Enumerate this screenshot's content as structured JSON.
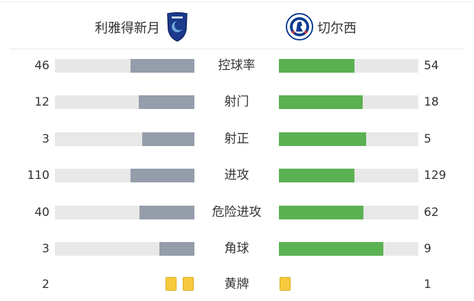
{
  "home": {
    "name": "利雅得新月",
    "crest": "al-hilal-crest"
  },
  "away": {
    "name": "切尔西",
    "crest": "chelsea-crest"
  },
  "colors": {
    "home_bar": "#959dab",
    "away_bar": "#5ab152",
    "track": "#e8e8e8",
    "card": "#f6ca3c"
  },
  "stats": [
    {
      "label": "控球率",
      "home": 46,
      "away": 54
    },
    {
      "label": "射门",
      "home": 12,
      "away": 18
    },
    {
      "label": "射正",
      "home": 3,
      "away": 5
    },
    {
      "label": "进攻",
      "home": 110,
      "away": 129
    },
    {
      "label": "危险进攻",
      "home": 40,
      "away": 62
    },
    {
      "label": "角球",
      "home": 3,
      "away": 9
    }
  ],
  "yellow_cards": {
    "label": "黄牌",
    "home": 2,
    "away": 1
  }
}
